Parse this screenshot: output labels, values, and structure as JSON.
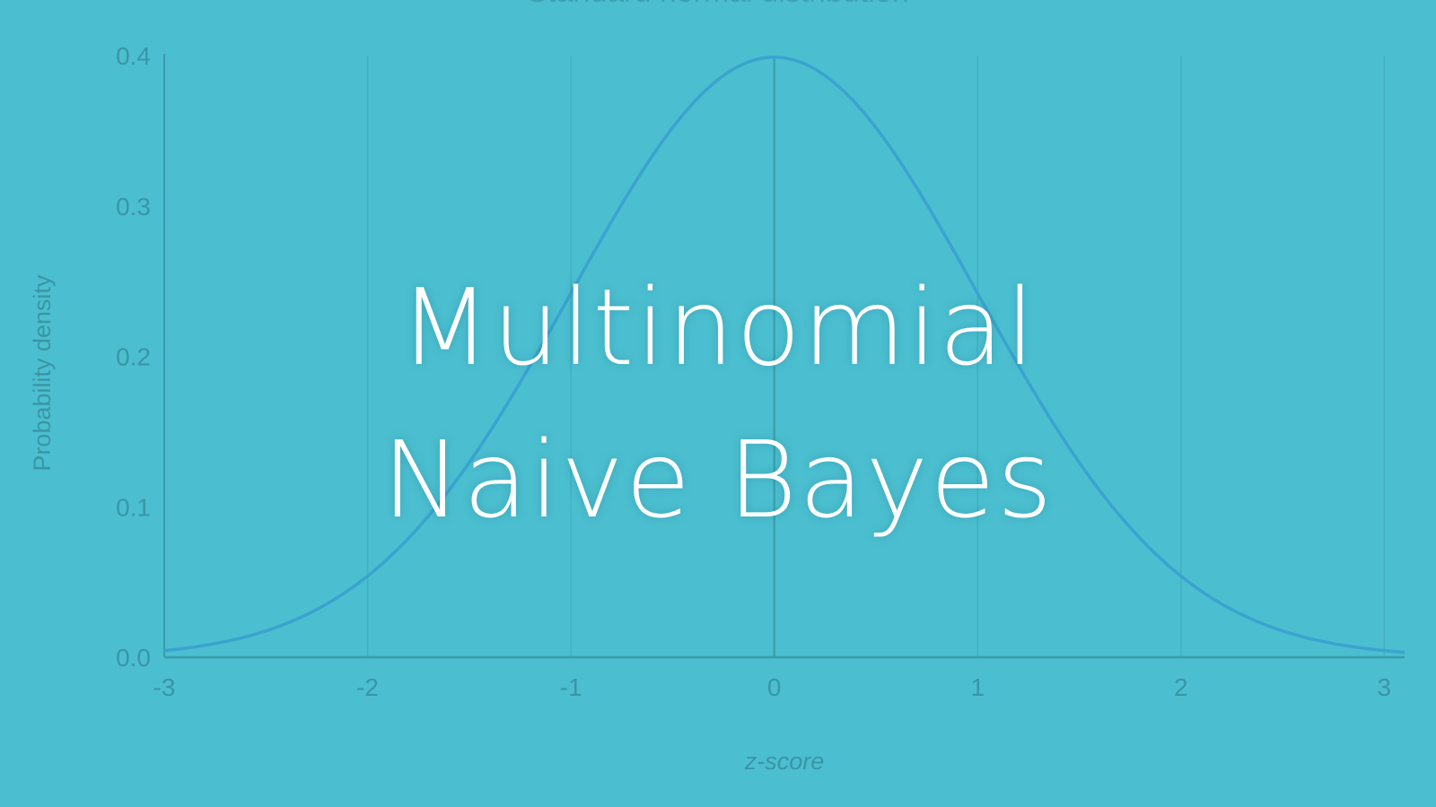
{
  "overlay": {
    "line1": "Multinomial",
    "line2": "Naive Bayes"
  },
  "colors": {
    "background": "#4bbfd0",
    "curve": "#3aa3cf",
    "axis": "#3a9aa9",
    "grid": "#43b0c1",
    "text": "#3a95a6",
    "overlay_text": "#ffffff"
  },
  "chart_data": {
    "type": "line",
    "title": "Standard normal distribution",
    "xlabel": "z-score",
    "ylabel": "Probability density",
    "xlim": [
      -3,
      3.1
    ],
    "ylim": [
      0,
      0.4
    ],
    "x_ticks": [
      -3,
      -2,
      -1,
      0,
      1,
      2,
      3
    ],
    "y_ticks": [
      0.0,
      0.1,
      0.2,
      0.3,
      0.4
    ],
    "y_tick_labels": [
      "0.0",
      "0.1",
      "0.2",
      "0.3",
      "0.4"
    ],
    "grid": "vertical",
    "series": [
      {
        "x": [
          -3.0,
          -2.5,
          -2.0,
          -1.5,
          -1.0,
          -0.5,
          0.0,
          0.5,
          1.0,
          1.5,
          2.0,
          2.5,
          3.0,
          3.1
        ],
        "y": [
          0.0044,
          0.0175,
          0.054,
          0.1295,
          0.242,
          0.3521,
          0.3989,
          0.3521,
          0.242,
          0.1295,
          0.054,
          0.0175,
          0.0044,
          0.0033
        ]
      }
    ]
  }
}
